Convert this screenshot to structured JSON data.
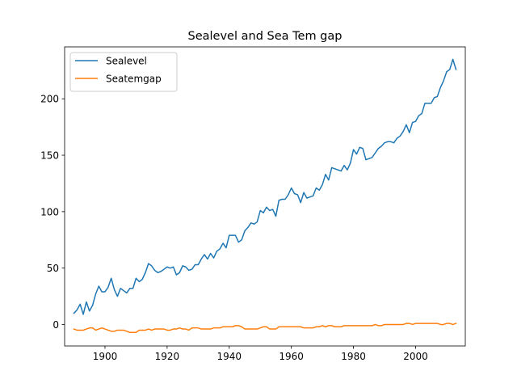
{
  "chart_data": {
    "type": "line",
    "title": "Sealevel and Sea Tem gap",
    "xlabel": "",
    "ylabel": "",
    "xlim": [
      1887,
      2016
    ],
    "ylim": [
      -19,
      246
    ],
    "x_ticks": [
      1900,
      1920,
      1940,
      1960,
      1980,
      2000
    ],
    "y_ticks": [
      0,
      50,
      100,
      150,
      200
    ],
    "grid": false,
    "legend": {
      "placement": "top-left"
    },
    "x": [
      1890,
      1891,
      1892,
      1893,
      1894,
      1895,
      1896,
      1897,
      1898,
      1899,
      1900,
      1901,
      1902,
      1903,
      1904,
      1905,
      1906,
      1907,
      1908,
      1909,
      1910,
      1911,
      1912,
      1913,
      1914,
      1915,
      1916,
      1917,
      1918,
      1919,
      1920,
      1921,
      1922,
      1923,
      1924,
      1925,
      1926,
      1927,
      1928,
      1929,
      1930,
      1931,
      1932,
      1933,
      1934,
      1935,
      1936,
      1937,
      1938,
      1939,
      1940,
      1941,
      1942,
      1943,
      1944,
      1945,
      1946,
      1947,
      1948,
      1949,
      1950,
      1951,
      1952,
      1953,
      1954,
      1955,
      1956,
      1957,
      1958,
      1959,
      1960,
      1961,
      1962,
      1963,
      1964,
      1965,
      1966,
      1967,
      1968,
      1969,
      1970,
      1971,
      1972,
      1973,
      1974,
      1975,
      1976,
      1977,
      1978,
      1979,
      1980,
      1981,
      1982,
      1983,
      1984,
      1985,
      1986,
      1987,
      1988,
      1989,
      1990,
      1991,
      1992,
      1993,
      1994,
      1995,
      1996,
      1997,
      1998,
      1999,
      2000,
      2001,
      2002,
      2003,
      2004,
      2005,
      2006,
      2007,
      2008,
      2009,
      2010,
      2011,
      2012,
      2013
    ],
    "series": [
      {
        "name": "Sealevel",
        "color": "#1f77b4",
        "values": [
          10,
          13,
          18,
          9,
          20,
          12,
          17,
          27,
          34,
          29,
          29,
          33,
          41,
          31,
          25,
          32,
          30,
          28,
          32,
          32,
          41,
          38,
          40,
          46,
          54,
          52,
          48,
          46,
          47,
          49,
          51,
          50,
          51,
          44,
          46,
          52,
          51,
          48,
          49,
          53,
          53,
          58,
          62,
          58,
          63,
          59,
          65,
          67,
          72,
          68,
          79,
          79,
          79,
          73,
          75,
          83,
          86,
          90,
          89,
          91,
          101,
          99,
          104,
          101,
          102,
          96,
          110,
          111,
          111,
          115,
          121,
          116,
          115,
          108,
          117,
          112,
          113,
          114,
          121,
          119,
          124,
          133,
          128,
          139,
          138,
          137,
          136,
          141,
          137,
          143,
          155,
          151,
          157,
          156,
          146,
          147,
          148,
          152,
          156,
          158,
          161,
          162,
          162,
          161,
          165,
          167,
          171,
          177,
          170,
          179,
          180,
          185,
          187,
          196,
          196,
          196,
          201,
          202,
          210,
          216,
          224,
          226,
          235,
          226
        ]
      },
      {
        "name": "Seatemgap",
        "color": "#ff7f0e",
        "values": [
          -4,
          -5,
          -5,
          -5,
          -4,
          -3,
          -3,
          -5,
          -4,
          -3,
          -4,
          -5,
          -6,
          -6,
          -5,
          -5,
          -5,
          -6,
          -7,
          -7,
          -7,
          -5,
          -5,
          -5,
          -4,
          -5,
          -4,
          -4,
          -4,
          -4,
          -5,
          -5,
          -4,
          -4,
          -3,
          -4,
          -4,
          -5,
          -3,
          -3,
          -3,
          -4,
          -4,
          -4,
          -4,
          -3,
          -3,
          -3,
          -2,
          -2,
          -2,
          -2,
          -1,
          -1,
          -2,
          -4,
          -4,
          -4,
          -4,
          -4,
          -3,
          -2,
          -2,
          -4,
          -4,
          -4,
          -2,
          -2,
          -2,
          -2,
          -2,
          -2,
          -2,
          -2,
          -3,
          -3,
          -3,
          -3,
          -2,
          -2,
          -1,
          -2,
          -1,
          -1,
          -2,
          -2,
          -2,
          -1,
          -1,
          -1,
          -1,
          -1,
          -1,
          -1,
          -1,
          -1,
          -1,
          0,
          -1,
          -1,
          0,
          0,
          0,
          0,
          0,
          0,
          0,
          1,
          1,
          0,
          1,
          1,
          1,
          1,
          1,
          1,
          1,
          1,
          0,
          0,
          1,
          1,
          0,
          1
        ]
      }
    ]
  }
}
